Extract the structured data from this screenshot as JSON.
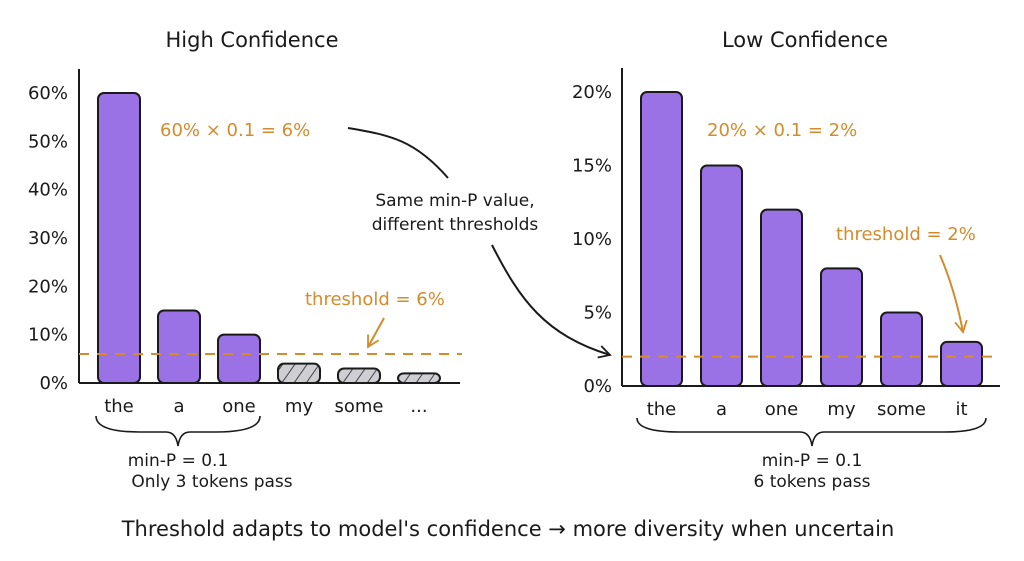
{
  "footer": "Threshold adapts to model's confidence → more diversity when uncertain",
  "middle_note": [
    "Same min-P value,",
    "different thresholds"
  ],
  "colors": {
    "bar_pass": "#9b72e6",
    "bar_fail": "#cfcfd3",
    "threshold": "#d38b2c",
    "ink": "#1a1a1a"
  },
  "chart_data": [
    {
      "type": "bar",
      "title": "High Confidence",
      "categories": [
        "the",
        "a",
        "one",
        "my",
        "some",
        "..."
      ],
      "values": [
        60,
        15,
        10,
        4,
        3,
        2
      ],
      "passes": [
        true,
        true,
        true,
        false,
        false,
        false
      ],
      "yticks": [
        "0%",
        "10%",
        "20%",
        "30%",
        "40%",
        "50%",
        "60%"
      ],
      "ytick_values": [
        0,
        10,
        20,
        30,
        40,
        50,
        60
      ],
      "ylim": [
        0,
        60
      ],
      "xlabel": "",
      "ylabel": "",
      "threshold": 6,
      "formula": "60% × 0.1 = 6%",
      "threshold_label": "threshold = 6%",
      "brace_label": [
        "min-P = 0.1",
        "Only 3 tokens pass"
      ]
    },
    {
      "type": "bar",
      "title": "Low Confidence",
      "categories": [
        "the",
        "a",
        "one",
        "my",
        "some",
        "it"
      ],
      "values": [
        20,
        15,
        12,
        8,
        5,
        3
      ],
      "passes": [
        true,
        true,
        true,
        true,
        true,
        true
      ],
      "yticks": [
        "0%",
        "5%",
        "10%",
        "15%",
        "20%"
      ],
      "ytick_values": [
        0,
        5,
        10,
        15,
        20
      ],
      "ylim": [
        0,
        20
      ],
      "xlabel": "",
      "ylabel": "",
      "threshold": 2,
      "formula": "20% × 0.1 = 2%",
      "threshold_label": "threshold = 2%",
      "brace_label": [
        "min-P = 0.1",
        "6 tokens pass"
      ]
    }
  ]
}
